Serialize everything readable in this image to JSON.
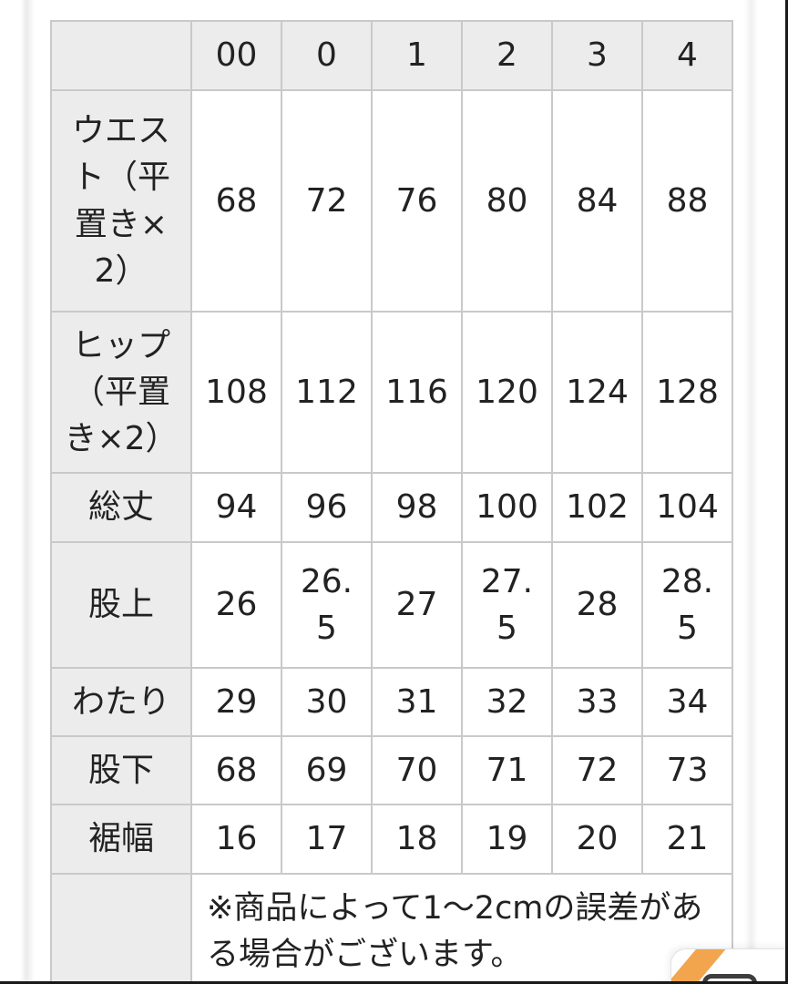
{
  "table": {
    "columns": [
      "",
      "00",
      "0",
      "1",
      "2",
      "3",
      "4"
    ],
    "rows": [
      {
        "label": "ウエスト（平置き×2）",
        "values": [
          "68",
          "72",
          "76",
          "80",
          "84",
          "88"
        ]
      },
      {
        "label": "ヒップ（平置き×2）",
        "values": [
          "108",
          "112",
          "116",
          "120",
          "124",
          "128"
        ]
      },
      {
        "label": "総丈",
        "values": [
          "94",
          "96",
          "98",
          "100",
          "102",
          "104"
        ]
      },
      {
        "label": "股上",
        "values": [
          "26",
          "26.5",
          "27",
          "27.5",
          "28",
          "28.5"
        ]
      },
      {
        "label": "わたり",
        "values": [
          "29",
          "30",
          "31",
          "32",
          "33",
          "34"
        ]
      },
      {
        "label": "股下",
        "values": [
          "68",
          "69",
          "70",
          "71",
          "72",
          "73"
        ]
      },
      {
        "label": "裾幅",
        "values": [
          "16",
          "17",
          "18",
          "19",
          "20",
          "21"
        ]
      }
    ],
    "note_label": "",
    "note": "※商品によって1〜2cmの誤差がある場合がございます。"
  },
  "floating_widget": {
    "icon": "window-icon",
    "accent_color": "#F2A54C"
  },
  "colors": {
    "header_bg": "#ececec",
    "cell_bg": "#ffffff",
    "border": "#c9c9c9",
    "text": "#222222",
    "accent": "#F2A54C",
    "edge": "#191919"
  }
}
